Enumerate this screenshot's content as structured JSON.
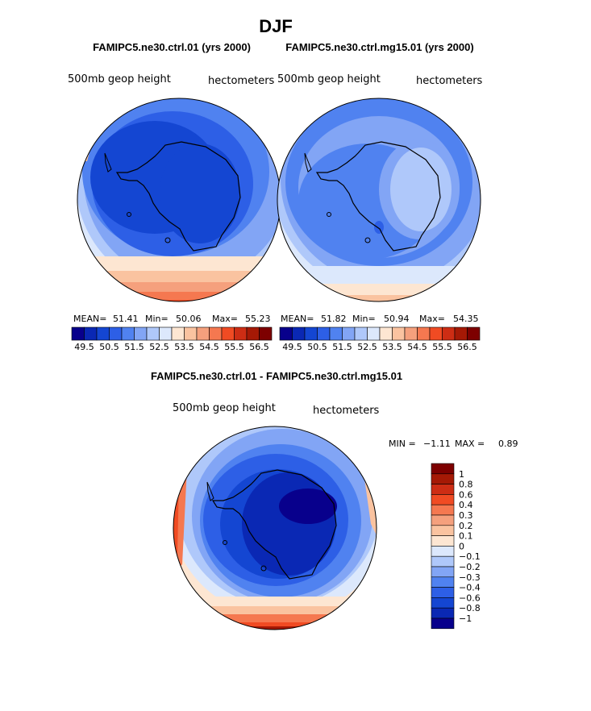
{
  "figure_title": "DJF",
  "panels": [
    {
      "title": "FAMIPC5.ne30.ctrl.01 (yrs 2000)",
      "field_label": "500mb geop height",
      "units_label": "hectometers",
      "stats": {
        "mean_label": "MEAN=",
        "mean": "51.41",
        "min_label": "Min=",
        "min": "50.06",
        "max_label": "Max=",
        "max": "55.23"
      }
    },
    {
      "title": "FAMIPC5.ne30.ctrl.mg15.01 (yrs 2000)",
      "field_label": "500mb geop height",
      "units_label": "hectometers",
      "stats": {
        "mean_label": "MEAN=",
        "mean": "51.82",
        "min_label": "Min=",
        "min": "50.94",
        "max_label": "Max=",
        "max": "54.35"
      }
    },
    {
      "title": "FAMIPC5.ne30.ctrl.01 - FAMIPC5.ne30.ctrl.mg15.01",
      "field_label": "500mb geop height",
      "units_label": "hectometers",
      "stats": {
        "min_label": "MIN =",
        "min": "−1.11",
        "max_label": "MAX =",
        "max": "0.89"
      }
    }
  ],
  "colorbar_main": {
    "tick_labels": [
      "49.5",
      "50.5",
      "51.5",
      "52.5",
      "53.5",
      "54.5",
      "55.5",
      "56.5"
    ],
    "colors": [
      "#08008c",
      "#0a28b4",
      "#1446d2",
      "#2d5fe6",
      "#5082f0",
      "#82a5f5",
      "#afc8fa",
      "#dce8fc",
      "#fde6d2",
      "#fac3a0",
      "#f5a07d",
      "#f57850",
      "#f04b23",
      "#cd2d14",
      "#a51905",
      "#7d0000"
    ]
  },
  "colorbar_diff": {
    "tick_labels": [
      "1",
      "0.8",
      "0.6",
      "0.4",
      "0.3",
      "0.2",
      "0.1",
      "0",
      "−0.1",
      "−0.2",
      "−0.3",
      "−0.4",
      "−0.6",
      "−0.8",
      "−1"
    ],
    "colors": [
      "#7d0000",
      "#a51905",
      "#cd2d14",
      "#f04b23",
      "#f57850",
      "#f5a07d",
      "#fac3a0",
      "#fde6d2",
      "#dce8fc",
      "#afc8fa",
      "#82a5f5",
      "#5082f0",
      "#2d5fe6",
      "#1446d2",
      "#0a28b4",
      "#08008c"
    ]
  },
  "chart_data": [
    {
      "type": "heatmap",
      "title": "FAMIPC5.ne30.ctrl.01 (yrs 2000)",
      "variable": "500mb geop height",
      "units": "hectometers",
      "projection": "south polar stereographic",
      "mean": 51.41,
      "min": 50.06,
      "max": 55.23,
      "contour_levels": [
        49.5,
        50.5,
        51.5,
        52.5,
        53.5,
        54.5,
        55.5,
        56.5
      ]
    },
    {
      "type": "heatmap",
      "title": "FAMIPC5.ne30.ctrl.mg15.01 (yrs 2000)",
      "variable": "500mb geop height",
      "units": "hectometers",
      "projection": "south polar stereographic",
      "mean": 51.82,
      "min": 50.94,
      "max": 54.35,
      "contour_levels": [
        49.5,
        50.5,
        51.5,
        52.5,
        53.5,
        54.5,
        55.5,
        56.5
      ]
    },
    {
      "type": "heatmap",
      "title": "FAMIPC5.ne30.ctrl.01 - FAMIPC5.ne30.ctrl.mg15.01",
      "variable": "500mb geop height",
      "units": "hectometers",
      "projection": "south polar stereographic",
      "min": -1.11,
      "max": 0.89,
      "contour_levels": [
        -1,
        -0.8,
        -0.6,
        -0.4,
        -0.3,
        -0.2,
        -0.1,
        0,
        0.1,
        0.2,
        0.3,
        0.4,
        0.6,
        0.8,
        1
      ]
    }
  ]
}
